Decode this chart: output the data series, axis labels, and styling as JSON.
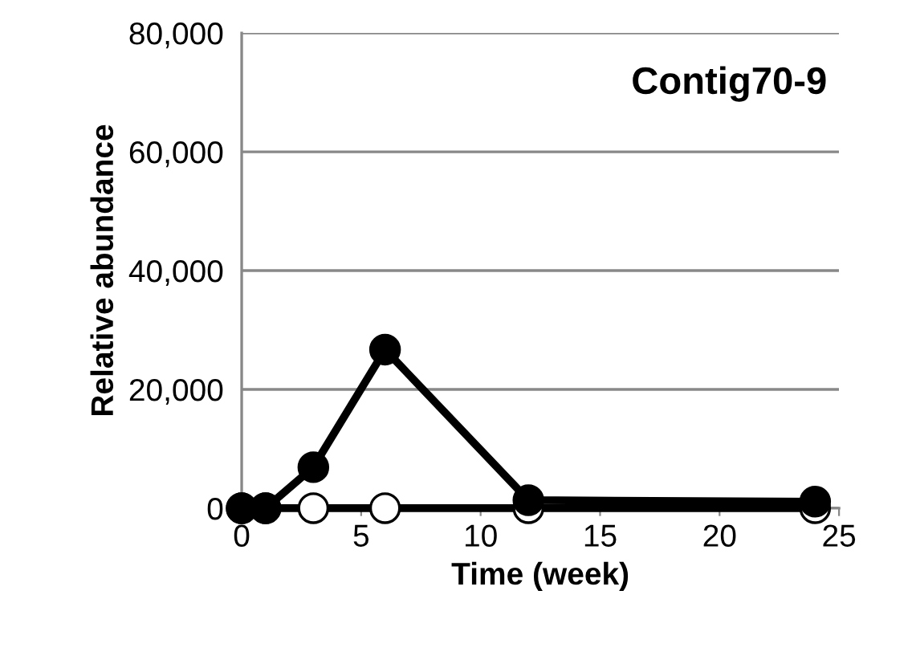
{
  "chart_data": {
    "type": "line",
    "title": "Contig70-9",
    "xlabel": "Time (week)",
    "ylabel": "Relative abundance",
    "x": [
      0,
      1,
      3,
      6,
      12,
      24
    ],
    "series": [
      {
        "color": "#ffffff",
        "values": [
          0,
          0,
          0,
          0,
          0,
          0
        ]
      },
      {
        "color": "#000000",
        "values": [
          0,
          0,
          6900,
          26700,
          1350,
          1100
        ]
      }
    ],
    "xlim": [
      0,
      25
    ],
    "xticks": [
      0,
      5,
      10,
      15,
      20,
      25
    ],
    "ylim": [
      0,
      80000
    ],
    "yticks": [
      {
        "value": 0,
        "label": "0"
      },
      {
        "value": 20000,
        "label": "20,000"
      },
      {
        "value": 40000,
        "label": "40,000"
      },
      {
        "value": 60000,
        "label": "60,000"
      },
      {
        "value": 80000,
        "label": "80,000"
      }
    ],
    "grid": "y",
    "marker": "circle",
    "line_style": "solid",
    "legend": false
  }
}
